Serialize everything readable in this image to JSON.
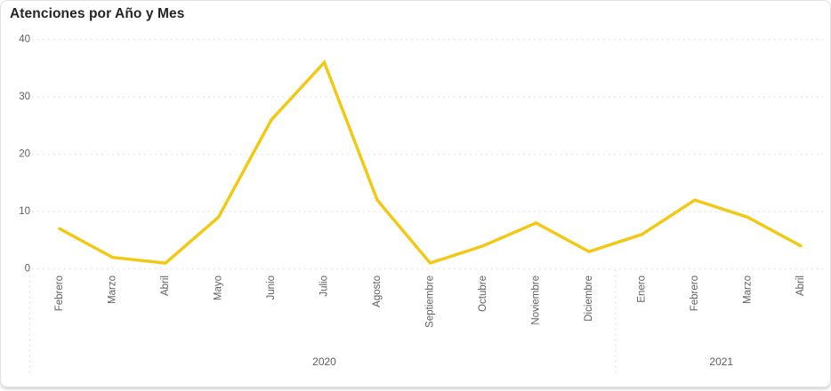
{
  "card": {
    "title": "Atenciones por Año y Mes"
  },
  "colors": {
    "line": "#F2C811",
    "title_text": "#252423",
    "axis_label": "#605E5C",
    "gridline": "#E1E1E1",
    "separator": "#D6D6D6",
    "card_border": "#E2E2E2",
    "background": "#FFFFFF"
  },
  "chart_data": {
    "type": "line",
    "title": "Atenciones por Año y Mes",
    "series_name": "Atenciones",
    "groups": [
      {
        "year": "2020",
        "categories": [
          "Febrero",
          "Marzo",
          "Abril",
          "Mayo",
          "Junio",
          "Julio",
          "Agosto",
          "Septiembre",
          "Octubre",
          "Noviembre",
          "Diciembre"
        ],
        "values": [
          7,
          2,
          1,
          9,
          26,
          36,
          12,
          1,
          4,
          8,
          3
        ]
      },
      {
        "year": "2021",
        "categories": [
          "Enero",
          "Febrero",
          "Marzo",
          "Abril"
        ],
        "values": [
          6,
          12,
          9,
          4
        ]
      }
    ],
    "xlabel": "",
    "ylabel": "",
    "ylim": [
      0,
      40
    ],
    "yticks": [
      0,
      10,
      20,
      30,
      40
    ],
    "grid": "dotted-horizontal",
    "legend": "none",
    "line_color": "#F2C811"
  }
}
